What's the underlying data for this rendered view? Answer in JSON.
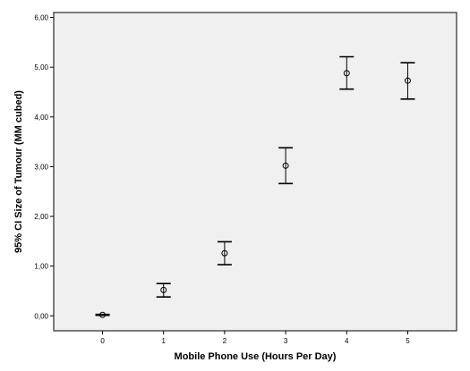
{
  "chart_data": {
    "type": "scatter",
    "title": "",
    "xlabel": "Mobile Phone Use (Hours Per Day)",
    "ylabel": "95% CI Size of Tumour (MM cubed)",
    "xlim": [
      -0.8,
      5.8
    ],
    "ylim": [
      -0.3,
      6.1
    ],
    "x_ticks": [
      "0",
      "1",
      "2",
      "3",
      "4",
      "5"
    ],
    "y_ticks": [
      "0,00",
      "1,00",
      "2,00",
      "3,00",
      "4,00",
      "5,00",
      "6,00"
    ],
    "grid": false,
    "legend": "none",
    "points": [
      {
        "x": 0,
        "mean": 0.02,
        "lower": 0.01,
        "upper": 0.03
      },
      {
        "x": 1,
        "mean": 0.52,
        "lower": 0.38,
        "upper": 0.65
      },
      {
        "x": 2,
        "mean": 1.26,
        "lower": 1.03,
        "upper": 1.49
      },
      {
        "x": 3,
        "mean": 3.02,
        "lower": 2.66,
        "upper": 3.38
      },
      {
        "x": 4,
        "mean": 4.88,
        "lower": 4.56,
        "upper": 5.21
      },
      {
        "x": 5,
        "mean": 4.73,
        "lower": 4.36,
        "upper": 5.09
      }
    ],
    "colors": {
      "plot_background": "#f0f0f0",
      "axis": "#000000",
      "marks": "#000000"
    }
  }
}
